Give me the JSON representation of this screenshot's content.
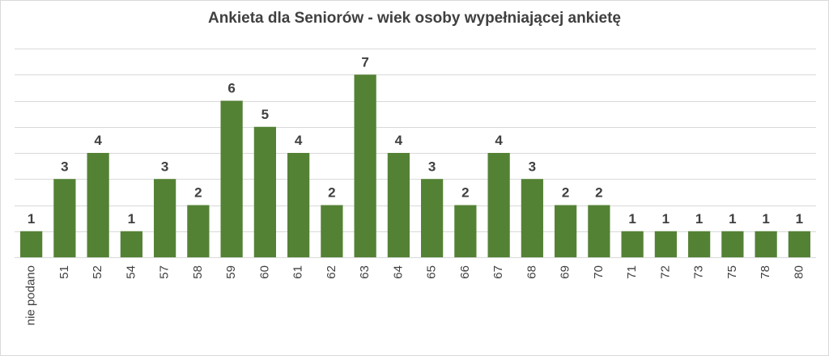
{
  "chart_data": {
    "type": "bar",
    "title": "Ankieta dla Seniorów - wiek osoby wypełniającej ankietę",
    "xlabel": "",
    "ylabel": "",
    "categories": [
      "nie podano",
      "51",
      "52",
      "54",
      "57",
      "58",
      "59",
      "60",
      "61",
      "62",
      "63",
      "64",
      "65",
      "66",
      "67",
      "68",
      "69",
      "70",
      "71",
      "72",
      "73",
      "75",
      "78",
      "80"
    ],
    "values": [
      1,
      3,
      4,
      1,
      3,
      2,
      6,
      5,
      4,
      2,
      7,
      4,
      3,
      2,
      4,
      3,
      2,
      2,
      1,
      1,
      1,
      1,
      1,
      1
    ],
    "ylim": [
      0,
      8
    ],
    "grid": true,
    "y_axis_labels_shown": false,
    "data_labels_shown": true,
    "bar_color": "#548235",
    "gridline_color": "#d9d9d9",
    "text_color": "#404040"
  }
}
